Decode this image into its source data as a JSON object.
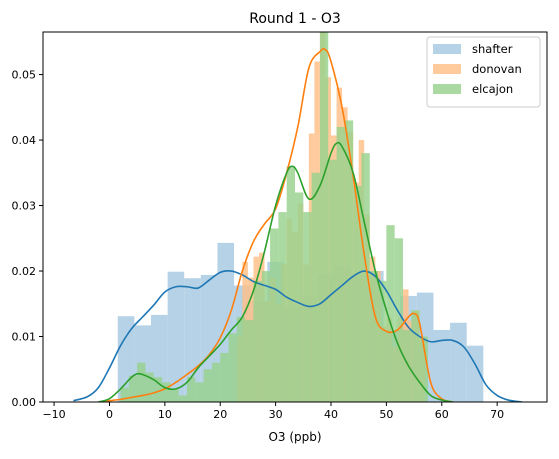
{
  "chart_data": {
    "type": "histogram",
    "title": "Round 1 - O3",
    "xlabel": "O3 (ppb)",
    "ylabel": "",
    "xlim": [
      -12,
      79
    ],
    "ylim": [
      0,
      0.0565
    ],
    "xticks": [
      -10,
      0,
      10,
      20,
      30,
      40,
      50,
      60,
      70
    ],
    "xtick_labels": [
      "−10",
      "0",
      "10",
      "20",
      "30",
      "40",
      "50",
      "60",
      "70"
    ],
    "yticks": [
      0.0,
      0.01,
      0.02,
      0.03,
      0.04,
      0.05
    ],
    "ytick_labels": [
      "0.00",
      "0.01",
      "0.02",
      "0.03",
      "0.04",
      "0.05"
    ],
    "legend_position": "top-right",
    "grid": false,
    "series": [
      {
        "name": "shafter",
        "hist_color": "#a6c8e0",
        "line_color": "#1f77b4",
        "bin_edges": [
          1.5,
          4.5,
          7.5,
          10.5,
          13.5,
          16.5,
          19.5,
          22.5,
          25.5,
          28.5,
          31.5,
          34.5,
          37.5,
          40.5,
          43.5,
          46.5,
          49.5,
          52.5,
          55.5,
          58.5,
          61.5,
          64.5,
          67.5
        ],
        "densities": [
          0.0131,
          0.0117,
          0.0133,
          0.0199,
          0.0189,
          0.0194,
          0.0243,
          0.0178,
          0.0154,
          0.0214,
          0.0145,
          0.0163,
          0.0195,
          0.0208,
          0.0193,
          0.02,
          0.0109,
          0.0162,
          0.0167,
          0.011,
          0.0121,
          0.0086
        ],
        "kde": {
          "x": [
            -6.5,
            -4,
            -2,
            0,
            2,
            4,
            6,
            8,
            10,
            12,
            14,
            16,
            18,
            20,
            22,
            24,
            26,
            28,
            30,
            32,
            34,
            36,
            38,
            40,
            42,
            44,
            46,
            48,
            50,
            52,
            54,
            56,
            58,
            60,
            62,
            64,
            66,
            68,
            70,
            72,
            74.5
          ],
          "y": [
            0.0002,
            0.0008,
            0.0022,
            0.0052,
            0.0086,
            0.0112,
            0.013,
            0.0148,
            0.0168,
            0.0176,
            0.0176,
            0.0174,
            0.0186,
            0.0198,
            0.02,
            0.0194,
            0.0184,
            0.0178,
            0.0172,
            0.016,
            0.0152,
            0.0146,
            0.015,
            0.0164,
            0.0178,
            0.0192,
            0.02,
            0.0192,
            0.017,
            0.014,
            0.0114,
            0.01,
            0.0092,
            0.0094,
            0.0094,
            0.0084,
            0.0058,
            0.0026,
            0.001,
            0.0003,
            0.0
          ]
        }
      },
      {
        "name": "donovan",
        "hist_color": "#ffbf86",
        "line_color": "#ff7f0e",
        "bin_edges": [
          23.0,
          24.0,
          25.0,
          26.0,
          27.0,
          28.0,
          29.0,
          30.0,
          31.0,
          32.0,
          33.0,
          34.0,
          35.0,
          36.0,
          37.0,
          38.0,
          39.0,
          40.0,
          41.0,
          42.0,
          43.0,
          44.0,
          45.0,
          46.0,
          47.0,
          48.0,
          49.0,
          50.0,
          51.0,
          52.0,
          53.0,
          54.0,
          55.0,
          56.0,
          57.0
        ],
        "densities": [
          0.01,
          0.0214,
          0.019,
          0.0222,
          0.0228,
          0.0154,
          0.019,
          0.015,
          0.021,
          0.028,
          0.026,
          0.0303,
          0.021,
          0.041,
          0.052,
          0.058,
          0.0496,
          0.0407,
          0.048,
          0.045,
          0.0412,
          0.0335,
          0.04,
          0.0286,
          0.0222,
          0.02,
          0.0115,
          0.0128,
          0.0084,
          0.0128,
          0.0172,
          0.0124,
          0.014,
          0.01
        ],
        "kde": {
          "x": [
            -2,
            0,
            2,
            4,
            6,
            8,
            10,
            12,
            14,
            16,
            18,
            20,
            22,
            24,
            26,
            28,
            30,
            32,
            34,
            36,
            38,
            39,
            40,
            42,
            44,
            46,
            48,
            50,
            52,
            54,
            55,
            56,
            58,
            60,
            62
          ],
          "y": [
            0.0,
            0.0002,
            0.0004,
            0.0007,
            0.001,
            0.0014,
            0.002,
            0.003,
            0.0042,
            0.0055,
            0.0072,
            0.0098,
            0.014,
            0.02,
            0.0245,
            0.0272,
            0.0295,
            0.035,
            0.042,
            0.051,
            0.0535,
            0.0538,
            0.052,
            0.045,
            0.0345,
            0.0225,
            0.013,
            0.0108,
            0.011,
            0.013,
            0.0135,
            0.012,
            0.003,
            0.0005,
            0.0
          ]
        }
      },
      {
        "name": "elcajon",
        "hist_color": "#97d28e",
        "line_color": "#2ca02c",
        "bin_edges": [
          2.0,
          3.5,
          5.0,
          6.5,
          8.0,
          9.5,
          11.0,
          12.5,
          14.0,
          15.5,
          17.0,
          18.5,
          20.0,
          21.5,
          23.0,
          24.5,
          26.0,
          27.5,
          29.0,
          30.5,
          32.0,
          33.5,
          35.0,
          36.5,
          38.0,
          39.5,
          41.0,
          42.5,
          44.0,
          45.5,
          47.0,
          48.5,
          50.0,
          51.5,
          53.0,
          54.5,
          56.0,
          57.5
        ],
        "densities": [
          0.0022,
          0.004,
          0.006,
          0.0045,
          0.0038,
          0.003,
          0.002,
          0.001,
          0.0038,
          0.003,
          0.005,
          0.006,
          0.0075,
          0.0105,
          0.013,
          0.0125,
          0.0185,
          0.02,
          0.0265,
          0.029,
          0.036,
          0.032,
          0.029,
          0.035,
          0.0565,
          0.037,
          0.042,
          0.043,
          0.033,
          0.038,
          0.02,
          0.0185,
          0.027,
          0.025,
          0.011,
          0.014,
          0.01
        ],
        "kde": {
          "x": [
            -2,
            0,
            2,
            4,
            5,
            6,
            8,
            10,
            12,
            14,
            16,
            18,
            20,
            22,
            24,
            26,
            28,
            30,
            32,
            33,
            34,
            36,
            38,
            40,
            41,
            42,
            44,
            46,
            48,
            50,
            52,
            54,
            56,
            58,
            60,
            62
          ],
          "y": [
            0.0,
            0.0005,
            0.002,
            0.0038,
            0.0043,
            0.0042,
            0.0034,
            0.0022,
            0.002,
            0.003,
            0.0052,
            0.007,
            0.0088,
            0.011,
            0.013,
            0.017,
            0.023,
            0.03,
            0.035,
            0.036,
            0.035,
            0.031,
            0.033,
            0.038,
            0.0395,
            0.039,
            0.035,
            0.0275,
            0.02,
            0.014,
            0.009,
            0.0055,
            0.003,
            0.001,
            0.0003,
            0.0
          ]
        }
      }
    ]
  }
}
